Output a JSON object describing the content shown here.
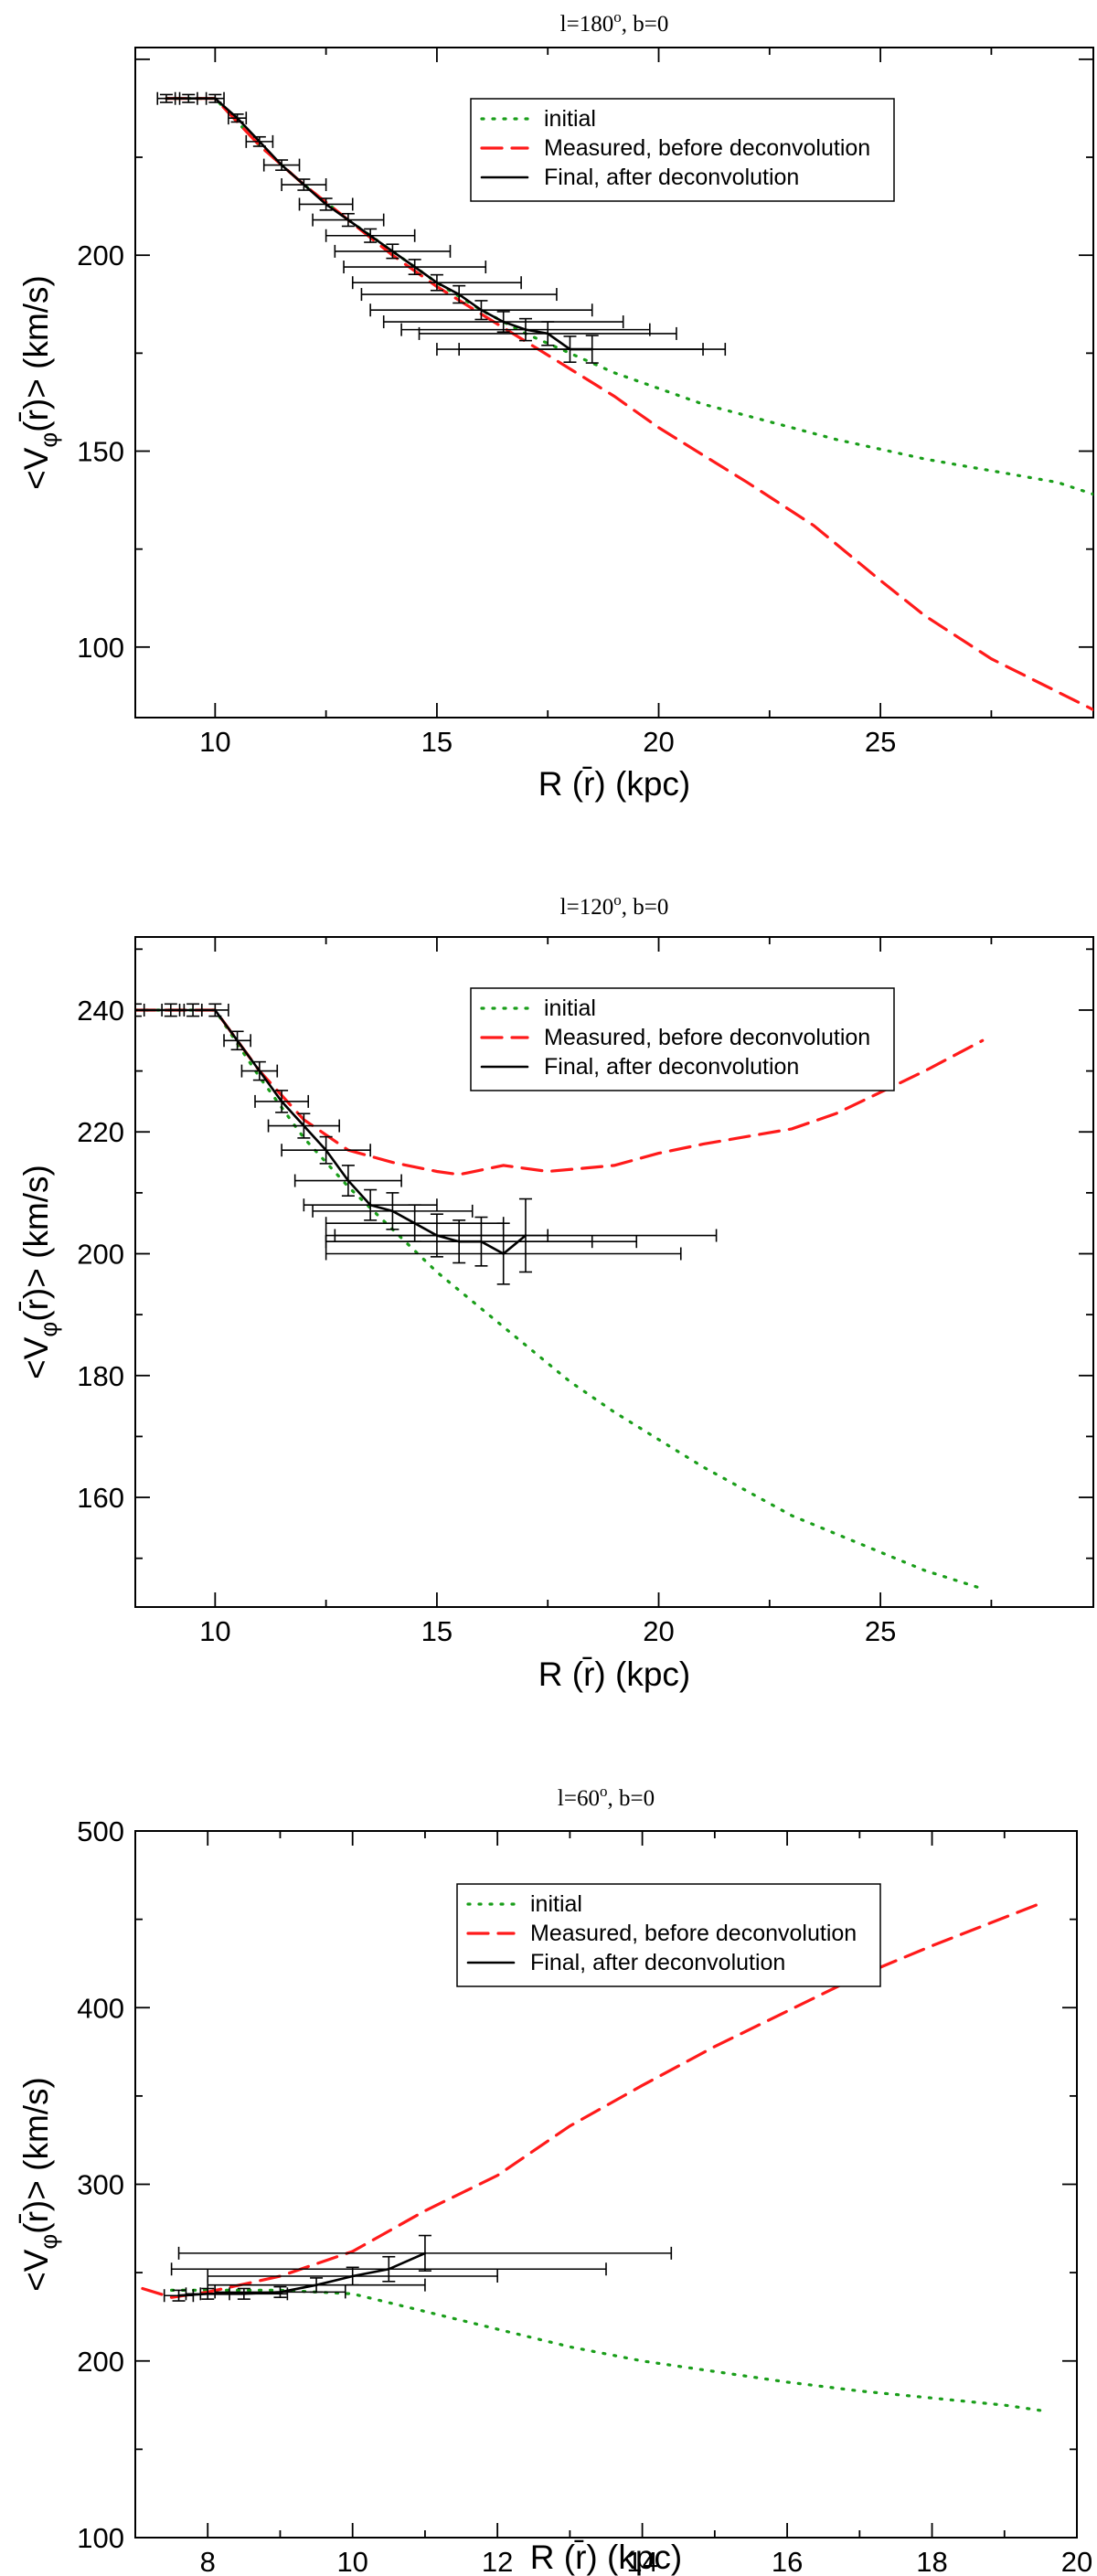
{
  "chart_data": [
    {
      "type": "line",
      "title": "l=180",
      "title_sup": "o",
      "title_suffix": ", b=0",
      "xlabel": "R (r̄) (kpc)",
      "ylabel_pre": "<V",
      "ylabel_sub": "φ",
      "ylabel_post": "(r̄)> (km/s)",
      "xlim": [
        8.2,
        29.8
      ],
      "ylim": [
        82,
        253
      ],
      "xticks": [
        10,
        15,
        20,
        25
      ],
      "yticks": [
        100,
        150,
        200
      ],
      "legend": [
        "initial",
        "Measured, before deconvolution",
        "Final, after deconvolution"
      ],
      "series": [
        {
          "name": "initial",
          "color": "#1a9e1a",
          "style": "dotted",
          "x": [
            8.9,
            10.0,
            11.0,
            12.0,
            13.0,
            14.0,
            15.0,
            16.0,
            17.0,
            18.0,
            19.0,
            20.0,
            21.0,
            22.0,
            23.0,
            24.0,
            25.0,
            26.0,
            27.0,
            28.0,
            29.0,
            29.8
          ],
          "y": [
            240,
            240,
            228,
            218,
            209,
            201,
            193,
            186,
            180,
            175,
            170,
            166,
            162,
            159,
            156,
            153,
            150.5,
            148,
            146,
            144,
            142,
            139
          ]
        },
        {
          "name": "Measured, before deconvolution",
          "color": "#ff1a1a",
          "style": "dashed",
          "x": [
            8.9,
            10.0,
            11.0,
            12.0,
            13.0,
            14.0,
            15.0,
            16.0,
            17.0,
            18.0,
            19.0,
            20.0,
            21.0,
            22.0,
            23.5,
            25.0,
            26.0,
            27.5,
            29.8
          ],
          "y": [
            240,
            240,
            228,
            218,
            209,
            200,
            192,
            185,
            178,
            171,
            164,
            156,
            149,
            142,
            131,
            117,
            108,
            97,
            84
          ]
        },
        {
          "name": "Final, after deconvolution",
          "color": "#000000",
          "style": "solid",
          "x": [
            8.9,
            9.4,
            10.0,
            10.5,
            11.0,
            11.5,
            12.0,
            12.5,
            13.0,
            13.5,
            14.0,
            14.5,
            15.0,
            15.5,
            16.0,
            16.5,
            17.0,
            17.5,
            18.0,
            18.5
          ],
          "y": [
            240,
            240,
            240,
            235,
            229,
            223,
            218,
            213,
            209,
            205,
            201,
            197,
            193,
            190,
            186,
            183,
            181,
            180,
            176,
            176
          ],
          "xerr": [
            0.2,
            0.2,
            0.2,
            0.2,
            0.3,
            0.4,
            0.5,
            0.6,
            0.8,
            1.0,
            1.3,
            1.6,
            1.9,
            2.2,
            2.5,
            2.7,
            2.8,
            2.9,
            3.0,
            3.0
          ],
          "yerr": [
            1,
            1,
            1,
            1,
            1.2,
            1.3,
            1.4,
            1.5,
            1.6,
            1.7,
            1.8,
            1.9,
            2,
            2.2,
            2.4,
            2.6,
            2.8,
            3.0,
            3.3,
            3.5
          ]
        }
      ]
    },
    {
      "type": "line",
      "title": "l=120",
      "title_sup": "o",
      "title_suffix": ", b=0",
      "xlabel": "R (r̄) (kpc)",
      "ylabel_pre": "<V",
      "ylabel_sub": "φ",
      "ylabel_post": "(r̄)> (km/s)",
      "xlim": [
        8.2,
        29.8
      ],
      "ylim": [
        142,
        252
      ],
      "xticks": [
        10,
        15,
        20,
        25
      ],
      "yticks": [
        160,
        180,
        200,
        220,
        240
      ],
      "legend": [
        "initial",
        "Measured, before deconvolution",
        "Final, after deconvolution"
      ],
      "series": [
        {
          "name": "initial",
          "color": "#1a9e1a",
          "style": "dotted",
          "x": [
            8.2,
            10.0,
            11.0,
            12.0,
            13.0,
            14.0,
            15.0,
            16.0,
            17.0,
            18.0,
            19.0,
            20.0,
            21.0,
            22.0,
            23.0,
            24.0,
            25.0,
            26.0,
            27.3
          ],
          "y": [
            240,
            240,
            229,
            219,
            211,
            204,
            197,
            191,
            185,
            179,
            174,
            169.5,
            165,
            161,
            157,
            154,
            151,
            148,
            145
          ]
        },
        {
          "name": "Measured, before deconvolution",
          "color": "#ff1a1a",
          "style": "dashed",
          "x": [
            8.2,
            10.0,
            11.0,
            12.0,
            13.0,
            14.0,
            15.0,
            15.5,
            16.5,
            17.5,
            19.0,
            20.0,
            21.0,
            23.0,
            24.0,
            25.0,
            26.0,
            27.3
          ],
          "y": [
            240,
            240,
            230,
            222,
            217,
            215,
            213.5,
            213,
            214.5,
            213.5,
            214.5,
            216.5,
            218,
            220.5,
            223,
            226.5,
            230,
            235
          ]
        },
        {
          "name": "Final, after deconvolution",
          "color": "#000000",
          "style": "solid",
          "x": [
            8.2,
            9.0,
            9.5,
            10.0,
            10.5,
            11.0,
            11.5,
            12.0,
            12.5,
            13.0,
            13.5,
            14.0,
            14.5,
            15.0,
            15.5,
            16.0,
            16.5,
            17.0
          ],
          "y": [
            240,
            240,
            240,
            240,
            235,
            230,
            225,
            221,
            217,
            212,
            208,
            207,
            205,
            203,
            202,
            202,
            200,
            203
          ],
          "xerr": [
            0.2,
            0.2,
            0.2,
            0.3,
            0.3,
            0.4,
            0.6,
            0.8,
            1.0,
            1.2,
            1.5,
            1.8,
            2.0,
            2.5,
            3.0,
            3.5,
            4.0,
            4.3
          ],
          "yerr": [
            1,
            1,
            1,
            1,
            1.5,
            1.5,
            1.8,
            2,
            2.2,
            2.5,
            2.5,
            3,
            3,
            3.5,
            3.5,
            4,
            5,
            6
          ]
        }
      ]
    },
    {
      "type": "line",
      "title": "l=60",
      "title_sup": "o",
      "title_suffix": ", b=0",
      "xlabel": "R (r̄) (kpc)",
      "ylabel_pre": "<V",
      "ylabel_sub": "φ",
      "ylabel_post": "(r̄)> (km/s)",
      "xlim": [
        7.0,
        20.0
      ],
      "ylim": [
        100,
        500
      ],
      "xticks": [
        8,
        10,
        12,
        14,
        16,
        18,
        20
      ],
      "yticks": [
        100,
        200,
        300,
        400,
        500
      ],
      "legend": [
        "initial",
        "Measured, before deconvolution",
        "Final, after deconvolution"
      ],
      "series": [
        {
          "name": "initial",
          "color": "#1a9e1a",
          "style": "dotted",
          "x": [
            7.5,
            8.0,
            9.0,
            10.0,
            11.0,
            12.0,
            13.0,
            14.0,
            15.0,
            16.0,
            17.0,
            18.0,
            19.0,
            19.5
          ],
          "y": [
            240,
            240,
            240,
            238,
            228,
            218,
            208,
            200,
            194,
            188,
            183,
            179,
            175,
            172
          ]
        },
        {
          "name": "Measured, before deconvolution",
          "color": "#ff1a1a",
          "style": "dashed",
          "x": [
            7.1,
            7.5,
            8.0,
            9.0,
            10.0,
            11.0,
            12.0,
            13.0,
            14.0,
            15.0,
            16.0,
            17.0,
            18.0,
            19.5
          ],
          "y": [
            241,
            236,
            239,
            248,
            262,
            285,
            305,
            333,
            356,
            378,
            398,
            418,
            435,
            459
          ]
        },
        {
          "name": "Final, after deconvolution",
          "color": "#000000",
          "style": "solid",
          "x": [
            7.6,
            8.0,
            8.5,
            9.0,
            9.5,
            10.0,
            10.5,
            11.0
          ],
          "y": [
            237,
            238,
            238,
            239,
            243,
            248,
            252,
            261
          ],
          "xerr": [
            0.2,
            0.3,
            0.6,
            0.9,
            1.5,
            2.0,
            3.0,
            3.4
          ],
          "yerr": [
            3,
            3,
            3,
            3,
            4,
            5,
            7,
            10
          ]
        }
      ]
    }
  ]
}
